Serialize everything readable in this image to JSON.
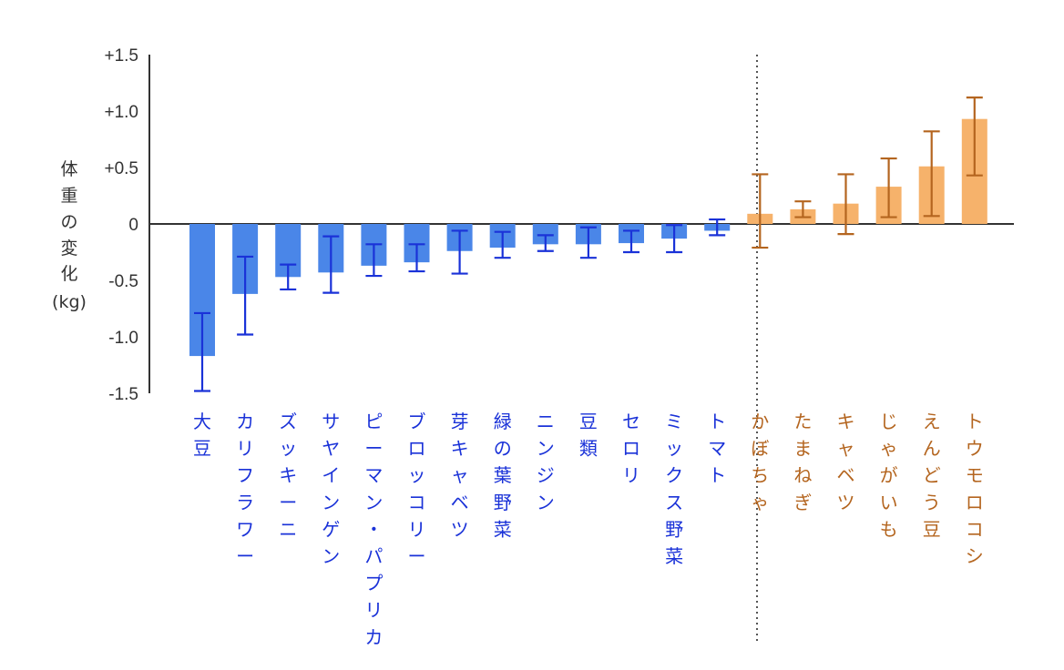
{
  "chart_data": {
    "type": "bar",
    "ylabel": "体重の変化(kg)",
    "ylabel_lines": [
      "体",
      "重",
      "の",
      "変",
      "化",
      "(kg)"
    ],
    "ylim": [
      -1.5,
      1.5
    ],
    "yticks": [
      {
        "value": 1.5,
        "label": "+1.5"
      },
      {
        "value": 1.0,
        "label": "+1.0"
      },
      {
        "value": 0.5,
        "label": "+0.5"
      },
      {
        "value": 0,
        "label": "0"
      },
      {
        "value": -0.5,
        "label": "-0.5"
      },
      {
        "value": -1.0,
        "label": "-1.0"
      },
      {
        "value": -1.5,
        "label": "-1.5"
      }
    ],
    "grid": false,
    "error_bars": true,
    "colors": {
      "negative_bar": "#4a86e8",
      "negative_error": "#1a32d8",
      "negative_label": "#1a32d8",
      "positive_bar": "#f6b26b",
      "positive_error": "#b4651f",
      "positive_label": "#b4651f"
    },
    "categories": [
      "大豆",
      "カリフラワー",
      "ズッキーニ",
      "サヤインゲン",
      "ピーマン・パプリカ",
      "ブロッコリー",
      "芽キャベツ",
      "緑の葉野菜",
      "ニンジン",
      "豆類",
      "セロリ",
      "ミックス野菜",
      "トマト",
      "かぼちゃ",
      "たまねぎ",
      "キャベツ",
      "じゃがいも",
      "えんどう豆",
      "トウモロコシ"
    ],
    "values": [
      -1.17,
      -0.62,
      -0.47,
      -0.43,
      -0.37,
      -0.34,
      -0.24,
      -0.21,
      -0.18,
      -0.18,
      -0.17,
      -0.13,
      -0.06,
      0.09,
      0.13,
      0.18,
      0.33,
      0.51,
      0.93
    ],
    "error_low": [
      -1.48,
      -0.98,
      -0.58,
      -0.61,
      -0.46,
      -0.42,
      -0.44,
      -0.3,
      -0.24,
      -0.3,
      -0.25,
      -0.25,
      -0.1,
      -0.21,
      0.06,
      -0.09,
      0.06,
      0.07,
      0.43
    ],
    "error_high": [
      -0.79,
      -0.29,
      -0.36,
      -0.11,
      -0.18,
      -0.18,
      -0.06,
      -0.07,
      -0.1,
      -0.03,
      -0.06,
      -0.01,
      0.04,
      0.44,
      0.2,
      0.44,
      0.58,
      0.82,
      1.12
    ]
  }
}
